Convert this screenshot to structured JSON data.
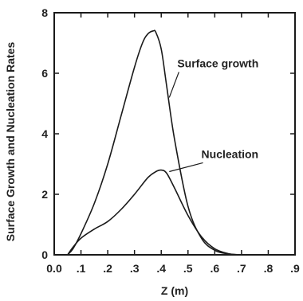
{
  "chart_data": {
    "type": "line",
    "title": "",
    "xlabel": "Z  (m)",
    "ylabel": "Surface Growth and  Nucleation Rates",
    "xlim": [
      0.0,
      0.9
    ],
    "ylim": [
      0,
      8
    ],
    "x_ticks": [
      0.0,
      0.1,
      0.2,
      0.3,
      0.4,
      0.5,
      0.6,
      0.7,
      0.8,
      0.9
    ],
    "x_tick_labels": [
      "0.0",
      ".1",
      ".2",
      ".3",
      ".4",
      ".5",
      ".6",
      ".7",
      ".8",
      ".9"
    ],
    "y_ticks": [
      0,
      2,
      4,
      6,
      8
    ],
    "y_tick_labels": [
      "0",
      "2",
      "4",
      "6",
      "8"
    ],
    "grid": false,
    "legend": "none",
    "series": [
      {
        "name": "Surface growth",
        "color": "#1a1a1a",
        "x": [
          0.05,
          0.07,
          0.1,
          0.15,
          0.2,
          0.25,
          0.3,
          0.33,
          0.35,
          0.37,
          0.38,
          0.4,
          0.42,
          0.45,
          0.5,
          0.55,
          0.6,
          0.65,
          0.7
        ],
        "y": [
          0.0,
          0.2,
          0.7,
          1.7,
          3.0,
          4.6,
          6.2,
          7.0,
          7.3,
          7.4,
          7.35,
          6.8,
          5.6,
          3.8,
          1.6,
          0.55,
          0.15,
          0.03,
          0.0
        ]
      },
      {
        "name": "Nucleation",
        "color": "#1a1a1a",
        "x": [
          0.05,
          0.07,
          0.1,
          0.15,
          0.2,
          0.25,
          0.3,
          0.35,
          0.38,
          0.4,
          0.42,
          0.45,
          0.5,
          0.55,
          0.6,
          0.65,
          0.69
        ],
        "y": [
          0.0,
          0.25,
          0.55,
          0.85,
          1.1,
          1.5,
          2.0,
          2.55,
          2.75,
          2.8,
          2.7,
          2.2,
          1.3,
          0.6,
          0.2,
          0.04,
          0.0
        ]
      }
    ],
    "annotations": [
      {
        "text": "Surface growth",
        "x": 0.46,
        "y": 6.2,
        "arrow_to": [
          0.43,
          5.2
        ]
      },
      {
        "text": "Nucleation",
        "x": 0.55,
        "y": 3.2,
        "arrow_to": [
          0.43,
          2.75
        ]
      }
    ]
  }
}
